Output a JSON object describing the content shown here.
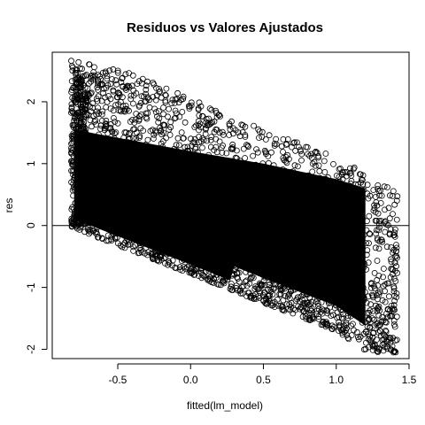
{
  "chart_data": {
    "type": "scatter",
    "title": "Residuos vs Valores Ajustados",
    "xlabel": "fitted(lm_model)",
    "ylabel": "res",
    "xlim": [
      -0.95,
      1.5
    ],
    "ylim": [
      -2.15,
      2.8
    ],
    "x_ticks": [
      -0.5,
      0.0,
      0.5,
      1.0,
      1.5
    ],
    "x_tick_labels": [
      "-0.5",
      "0.0",
      "0.5",
      "1.0",
      "1.5"
    ],
    "y_ticks": [
      -2,
      -1,
      0,
      1,
      2
    ],
    "y_tick_labels": [
      "-2",
      "-1",
      "0",
      "1",
      "2"
    ],
    "reference_line": {
      "orientation": "horizontal",
      "y": 0
    },
    "marker": "open-circle",
    "grid": false,
    "legend": "none",
    "cloud": {
      "x_range": [
        -0.82,
        1.42
      ],
      "lower_bound": [
        [
          -0.82,
          -0.03
        ],
        [
          0.0,
          -0.78
        ],
        [
          0.5,
          -1.25
        ],
        [
          1.0,
          -1.7
        ],
        [
          1.22,
          -2.05
        ]
      ],
      "upper_bound": [
        [
          -0.82,
          2.7
        ],
        [
          -0.4,
          2.45
        ],
        [
          0.0,
          2.05
        ],
        [
          0.5,
          1.55
        ],
        [
          1.0,
          1.1
        ],
        [
          1.42,
          0.55
        ]
      ],
      "dense_upper": [
        [
          -0.8,
          1.55
        ],
        [
          0.0,
          1.2
        ],
        [
          0.5,
          1.0
        ],
        [
          1.0,
          0.75
        ],
        [
          1.2,
          0.6
        ]
      ],
      "dense_lower_offset": 0.15
    },
    "colors": {
      "points": "#000000",
      "axes": "#000000",
      "background": "#ffffff"
    }
  }
}
